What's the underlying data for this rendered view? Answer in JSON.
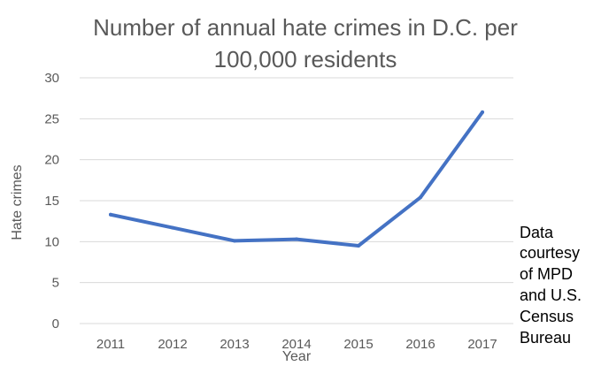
{
  "chart_data": {
    "type": "line",
    "title_lines": [
      "Number of annual hate crimes in D.C. per",
      "100,000 residents"
    ],
    "xlabel": "Year",
    "ylabel": "Hate crimes",
    "categories": [
      "2011",
      "2012",
      "2013",
      "2014",
      "2015",
      "2016",
      "2017"
    ],
    "series": [
      {
        "values": [
          13.3,
          11.7,
          10.1,
          10.3,
          9.5,
          15.4,
          25.8
        ],
        "color": "#4472c4"
      }
    ],
    "ylim": [
      0,
      30
    ],
    "yticks": [
      0,
      5,
      10,
      15,
      20,
      25,
      30
    ],
    "grid": true,
    "legend": "none",
    "note_lines": [
      "Data",
      "courtesy",
      "of MPD",
      "and U.S.",
      "Census",
      "Bureau"
    ]
  }
}
